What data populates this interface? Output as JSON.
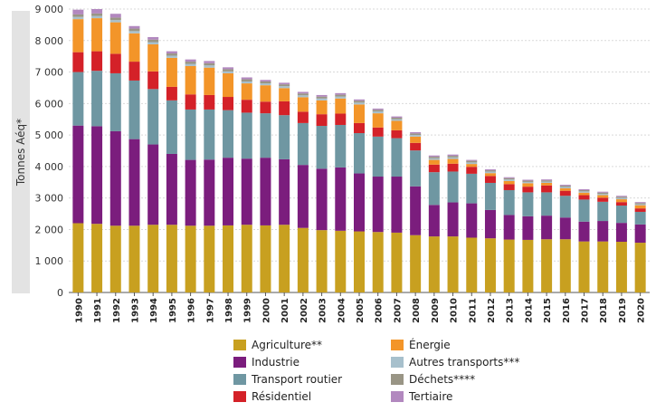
{
  "chart_data": {
    "type": "bar",
    "stacked": true,
    "ylabel": "Tonnes Aéq*",
    "xlabel": "",
    "ylim": [
      0,
      9000
    ],
    "ytick_labels": [
      "0",
      "1 000",
      "2 000",
      "3 000",
      "4 000",
      "5 000",
      "6 000",
      "7 000",
      "8 000",
      "9 000"
    ],
    "ytick_values": [
      0,
      1000,
      2000,
      3000,
      4000,
      5000,
      6000,
      7000,
      8000,
      9000
    ],
    "grid": true,
    "legend_position": "bottom",
    "categories": [
      "1990",
      "1991",
      "1992",
      "1993",
      "1994",
      "1995",
      "1996",
      "1997",
      "1998",
      "1999",
      "2000",
      "2001",
      "2002",
      "2003",
      "2004",
      "2005",
      "2006",
      "2007",
      "2008",
      "2009",
      "2010",
      "2011",
      "2012",
      "2013",
      "2014",
      "2015",
      "2016",
      "2017",
      "2018",
      "2019",
      "2020"
    ],
    "series": [
      {
        "name": "Agriculture**",
        "color": "#c8a020",
        "values": [
          2200,
          2180,
          2120,
          2120,
          2150,
          2150,
          2120,
          2120,
          2130,
          2150,
          2130,
          2150,
          2050,
          1980,
          1960,
          1940,
          1920,
          1900,
          1820,
          1780,
          1780,
          1740,
          1720,
          1680,
          1670,
          1690,
          1690,
          1620,
          1620,
          1610,
          1580
        ]
      },
      {
        "name": "Industrie",
        "color": "#7b1d7d",
        "values": [
          3100,
          3100,
          3000,
          2750,
          2550,
          2250,
          2090,
          2100,
          2150,
          2100,
          2150,
          2080,
          2000,
          1950,
          2010,
          1840,
          1760,
          1780,
          1550,
          1000,
          1080,
          1090,
          900,
          780,
          750,
          750,
          690,
          630,
          650,
          600,
          580
        ]
      },
      {
        "name": "Transport routier",
        "color": "#6f97a2",
        "values": [
          1700,
          1760,
          1840,
          1860,
          1760,
          1700,
          1600,
          1590,
          1510,
          1460,
          1410,
          1400,
          1330,
          1360,
          1350,
          1280,
          1270,
          1220,
          1140,
          1040,
          980,
          940,
          860,
          790,
          760,
          740,
          690,
          700,
          610,
          550,
          400
        ]
      },
      {
        "name": "Résidentiel",
        "color": "#d42128",
        "values": [
          630,
          620,
          620,
          600,
          560,
          430,
          480,
          460,
          420,
          410,
          370,
          440,
          360,
          370,
          360,
          320,
          290,
          250,
          240,
          240,
          250,
          220,
          220,
          190,
          180,
          220,
          160,
          140,
          130,
          110,
          110
        ]
      },
      {
        "name": "Énergie",
        "color": "#f39529",
        "values": [
          1050,
          1050,
          1000,
          900,
          860,
          920,
          900,
          870,
          750,
          520,
          520,
          420,
          460,
          440,
          480,
          590,
          450,
          300,
          200,
          150,
          150,
          90,
          90,
          100,
          110,
          80,
          80,
          80,
          80,
          90,
          100
        ]
      },
      {
        "name": "Autres transports***",
        "color": "#a7c0cc",
        "values": [
          70,
          70,
          70,
          70,
          70,
          70,
          70,
          70,
          60,
          60,
          60,
          60,
          60,
          60,
          60,
          60,
          60,
          50,
          50,
          50,
          50,
          50,
          50,
          50,
          40,
          40,
          40,
          40,
          40,
          40,
          30
        ]
      },
      {
        "name": "Déchets****",
        "color": "#999585",
        "values": [
          80,
          80,
          80,
          80,
          80,
          70,
          70,
          70,
          70,
          70,
          60,
          60,
          60,
          60,
          60,
          60,
          50,
          50,
          50,
          50,
          50,
          50,
          40,
          40,
          40,
          40,
          40,
          40,
          40,
          40,
          40
        ]
      },
      {
        "name": "Tertiaire",
        "color": "#b288bf",
        "values": [
          150,
          140,
          120,
          80,
          80,
          70,
          70,
          70,
          60,
          60,
          50,
          50,
          50,
          50,
          50,
          40,
          40,
          40,
          40,
          40,
          40,
          30,
          30,
          30,
          30,
          30,
          30,
          30,
          30,
          30,
          30
        ]
      }
    ]
  }
}
